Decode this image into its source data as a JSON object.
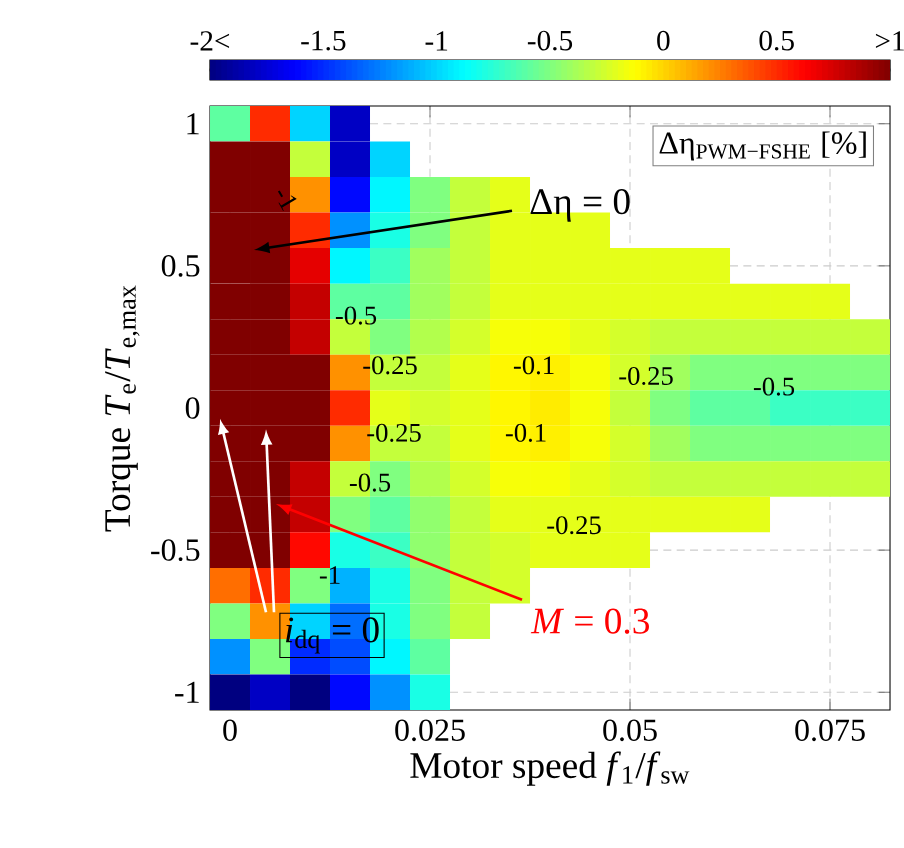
{
  "chart_data": {
    "type": "heatmap",
    "xlabel": "Motor speed *f*$_{1}$/*f*$_{sw}$",
    "ylabel": "Torque *T*$_{e}$/*T*$_{e,max}$",
    "clabel": "Δη$_{PWM−FSHE}$ [%]",
    "categories": [
      "0",
      null,
      null,
      null,
      null,
      "0.025",
      null,
      null,
      null,
      null,
      "0.05",
      null,
      null,
      null,
      null,
      "0.075",
      null
    ],
    "y_categories": [
      "1",
      null,
      null,
      null,
      "0.5",
      null,
      null,
      null,
      "0",
      null,
      null,
      null,
      "-0.5",
      null,
      null,
      null,
      "-1"
    ],
    "cells": [
      [
        -0.6,
        0.5,
        -1.0,
        -1.8,
        null,
        null,
        null,
        null,
        null,
        null,
        null,
        null,
        null,
        null,
        null,
        null,
        null
      ],
      [
        1.2,
        1.2,
        -0.3,
        -1.8,
        -1.0,
        null,
        null,
        null,
        null,
        null,
        null,
        null,
        null,
        null,
        null,
        null,
        null
      ],
      [
        1.2,
        1.2,
        0.2,
        -1.6,
        -0.9,
        -0.5,
        -0.3,
        -0.2,
        null,
        null,
        null,
        null,
        null,
        null,
        null,
        null,
        null
      ],
      [
        1.2,
        1.2,
        0.5,
        -1.2,
        -0.8,
        -0.5,
        -0.3,
        -0.2,
        -0.2,
        -0.2,
        null,
        null,
        null,
        null,
        null,
        null,
        null
      ],
      [
        1.2,
        1.2,
        0.7,
        -0.9,
        -0.7,
        -0.4,
        -0.3,
        -0.2,
        -0.2,
        -0.2,
        -0.2,
        -0.2,
        -0.2,
        null,
        null,
        null,
        null
      ],
      [
        1.2,
        1.2,
        0.8,
        -0.6,
        -0.6,
        -0.4,
        -0.3,
        -0.2,
        -0.2,
        -0.2,
        -0.2,
        -0.2,
        -0.2,
        -0.2,
        -0.2,
        -0.2,
        null
      ],
      [
        1.2,
        1.2,
        0.8,
        -0.3,
        -0.5,
        -0.35,
        -0.25,
        -0.15,
        -0.15,
        -0.2,
        -0.25,
        -0.3,
        -0.3,
        -0.3,
        -0.3,
        -0.3,
        -0.3
      ],
      [
        1.2,
        1.2,
        1.0,
        0.2,
        -0.3,
        -0.3,
        -0.2,
        -0.1,
        -0.08,
        -0.15,
        -0.25,
        -0.4,
        -0.5,
        -0.5,
        -0.5,
        -0.5,
        -0.5
      ],
      [
        1.2,
        1.2,
        1.0,
        0.5,
        -0.2,
        -0.25,
        -0.2,
        -0.1,
        -0.07,
        -0.15,
        -0.3,
        -0.5,
        -0.6,
        -0.6,
        -0.7,
        -0.7,
        -0.7
      ],
      [
        1.2,
        1.2,
        1.0,
        0.2,
        -0.3,
        -0.3,
        -0.2,
        -0.1,
        -0.08,
        -0.15,
        -0.25,
        -0.4,
        -0.5,
        -0.5,
        -0.5,
        -0.5,
        -0.5
      ],
      [
        1.2,
        1.2,
        0.8,
        -0.3,
        -0.5,
        -0.35,
        -0.25,
        -0.15,
        -0.15,
        -0.2,
        -0.25,
        -0.3,
        -0.3,
        -0.3,
        -0.3,
        -0.3,
        -0.3
      ],
      [
        1.2,
        1.2,
        0.8,
        -0.5,
        -0.6,
        -0.45,
        -0.3,
        -0.2,
        -0.2,
        -0.2,
        -0.2,
        -0.2,
        -0.2,
        -0.2,
        null,
        null,
        null
      ],
      [
        1.2,
        1.1,
        0.6,
        -0.8,
        -0.7,
        -0.45,
        -0.3,
        -0.25,
        -0.2,
        -0.2,
        -0.2,
        null,
        null,
        null,
        null,
        null,
        null
      ],
      [
        0.3,
        0.5,
        -0.5,
        -1.1,
        -0.8,
        -0.5,
        -0.3,
        -0.25,
        null,
        null,
        null,
        null,
        null,
        null,
        null,
        null,
        null
      ],
      [
        -0.5,
        0.2,
        -1.0,
        -1.3,
        -0.8,
        -0.5,
        -0.3,
        null,
        null,
        null,
        null,
        null,
        null,
        null,
        null,
        null,
        null
      ],
      [
        -1.2,
        -0.5,
        -1.5,
        -1.4,
        -0.9,
        -0.6,
        null,
        null,
        null,
        null,
        null,
        null,
        null,
        null,
        null,
        null,
        null
      ],
      [
        -2,
        -1.8,
        -2,
        -1.6,
        -1.2,
        -0.8,
        null,
        null,
        null,
        null,
        null,
        null,
        null,
        null,
        null,
        null,
        null
      ]
    ],
    "clim": [
      -2,
      1
    ],
    "cticks": [
      {
        "value": -2,
        "label": "-2<"
      },
      -1.5,
      -1,
      -0.5,
      0,
      0.5,
      {
        "value": 1,
        "label": ">1"
      }
    ],
    "grid": true,
    "annotations": [
      "-1",
      "-0.5",
      "-0.25",
      "-0.1",
      "-0.1",
      "-0.25",
      "-0.5",
      "-1",
      "-0.25",
      "-0.5",
      "-0.25",
      "Δη = 0",
      "*i*$_{dq}$ = 0",
      "*M* = 0.3"
    ]
  }
}
